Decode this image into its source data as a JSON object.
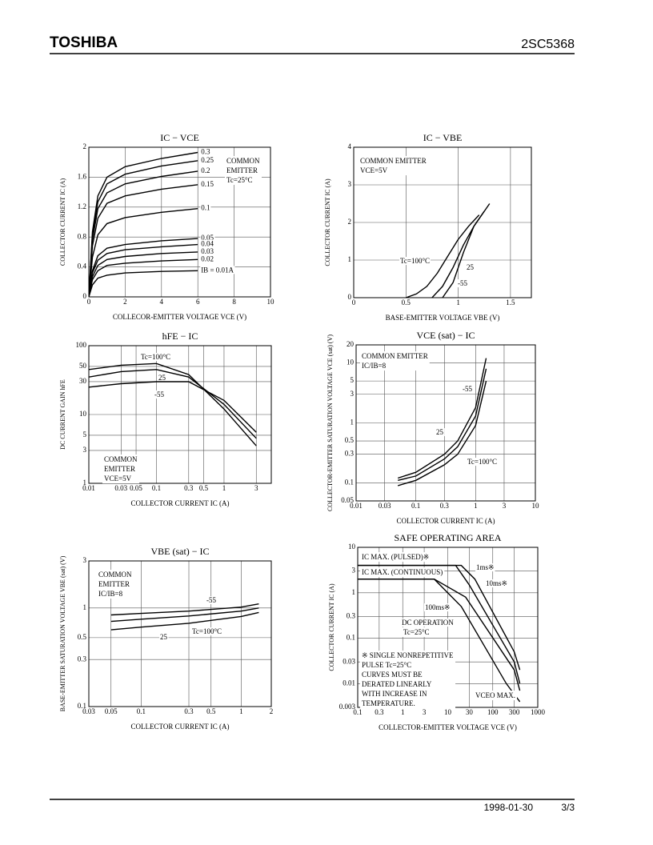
{
  "header": {
    "brand": "TOSHIBA",
    "part": "2SC5368"
  },
  "footer": {
    "date": "1998-01-30",
    "page": "3/3"
  },
  "chart_data": [
    {
      "type": "line",
      "title": "IC − VCE",
      "x_label": "COLLECOR-EMITTER VOLTAGE VCE (V)",
      "y_label": "COLLECTOR CURRENT IC (A)",
      "xlim": [
        0,
        10
      ],
      "xticks": [
        0,
        2,
        4,
        6,
        8,
        10
      ],
      "ylim": [
        0,
        2
      ],
      "yticks": [
        0,
        0.4,
        0.8,
        1.2,
        1.6,
        2
      ],
      "grid": true,
      "color": "#000",
      "notes": [
        [
          "COMMON",
          "EMITTER",
          "Tc=25°C"
        ]
      ],
      "series": [
        {
          "name": "0.3",
          "x": [
            0,
            0.2,
            0.5,
            1,
            2,
            4,
            6
          ],
          "values": [
            0,
            0.87,
            1.35,
            1.6,
            1.74,
            1.85,
            1.93
          ]
        },
        {
          "name": "0.25",
          "x": [
            0,
            0.2,
            0.5,
            1,
            2,
            4,
            6
          ],
          "values": [
            0,
            0.82,
            1.27,
            1.51,
            1.64,
            1.75,
            1.82
          ]
        },
        {
          "name": "0.2",
          "x": [
            0,
            0.2,
            0.5,
            1,
            2,
            4,
            6
          ],
          "values": [
            0,
            0.76,
            1.18,
            1.39,
            1.51,
            1.61,
            1.68
          ]
        },
        {
          "name": "0.15",
          "x": [
            0,
            0.2,
            0.5,
            1,
            2,
            4,
            6
          ],
          "values": [
            0,
            0.68,
            1.05,
            1.25,
            1.35,
            1.44,
            1.5
          ]
        },
        {
          "name": "0.1",
          "x": [
            0,
            0.2,
            0.5,
            1,
            2,
            4,
            6
          ],
          "values": [
            0,
            0.53,
            0.83,
            0.98,
            1.06,
            1.13,
            1.18
          ]
        },
        {
          "name": "0.05",
          "x": [
            0,
            0.2,
            0.5,
            1,
            2,
            4,
            6
          ],
          "values": [
            0,
            0.35,
            0.55,
            0.65,
            0.7,
            0.75,
            0.78
          ]
        },
        {
          "name": "0.04",
          "x": [
            0,
            0.2,
            0.5,
            1,
            2,
            4,
            6
          ],
          "values": [
            0,
            0.32,
            0.49,
            0.58,
            0.63,
            0.67,
            0.7
          ]
        },
        {
          "name": "0.03",
          "x": [
            0,
            0.2,
            0.5,
            1,
            2,
            4,
            6
          ],
          "values": [
            0,
            0.27,
            0.42,
            0.5,
            0.54,
            0.58,
            0.6
          ]
        },
        {
          "name": "0.02",
          "x": [
            0,
            0.2,
            0.5,
            1,
            2,
            4,
            6
          ],
          "values": [
            0,
            0.23,
            0.35,
            0.42,
            0.45,
            0.48,
            0.5
          ]
        },
        {
          "name": "IB = 0.01A",
          "x": [
            0,
            0.2,
            0.5,
            1,
            2,
            4,
            6
          ],
          "values": [
            0,
            0.16,
            0.25,
            0.29,
            0.32,
            0.34,
            0.35
          ]
        }
      ]
    },
    {
      "type": "line",
      "title": "IC − VBE",
      "x_label": "BASE-EMITTER VOLTAGE VBE (V)",
      "y_label": "COLLECTOR CURRENT IC (A)",
      "xlim": [
        0,
        1.7
      ],
      "xticks": [
        0,
        0.5,
        1,
        1.5
      ],
      "ylim": [
        0,
        4
      ],
      "yticks": [
        0,
        1,
        2,
        3,
        4
      ],
      "grid": true,
      "color": "#000",
      "notes": [
        [
          "COMMON EMITTER",
          "VCE=5V"
        ]
      ],
      "series": [
        {
          "name": "Tc=100°C",
          "x": [
            0.5,
            0.6,
            0.7,
            0.8,
            0.9,
            1.0,
            1.1,
            1.2
          ],
          "values": [
            0,
            0.1,
            0.3,
            0.65,
            1.1,
            1.55,
            1.9,
            2.2
          ]
        },
        {
          "name": "25",
          "x": [
            0.75,
            0.85,
            0.95,
            1.05,
            1.15,
            1.25
          ],
          "values": [
            0,
            0.3,
            0.8,
            1.4,
            1.9,
            2.3
          ]
        },
        {
          "name": "-55",
          "x": [
            0.85,
            0.95,
            1.05,
            1.15,
            1.3
          ],
          "values": [
            0,
            0.4,
            1.2,
            1.9,
            2.5
          ]
        }
      ]
    },
    {
      "type": "line",
      "title": "hFE − IC",
      "x_label": "COLLECTOR CURRENT IC (A)",
      "y_label": "DC CURRENT GAIN hFE",
      "xscale": "log",
      "xlim": [
        0.01,
        5
      ],
      "xticks": [
        0.01,
        0.03,
        0.05,
        0.1,
        0.3,
        0.5,
        1,
        3
      ],
      "yscale": "log",
      "ylim": [
        1,
        100
      ],
      "yticks": [
        1,
        3,
        5,
        10,
        30,
        50,
        100
      ],
      "grid": true,
      "color": "#000",
      "notes": [
        [
          "COMMON",
          "EMITTER",
          "VCE=5V"
        ]
      ],
      "series": [
        {
          "name": "Tc=100°C",
          "x": [
            0.01,
            0.03,
            0.1,
            0.3,
            1,
            3
          ],
          "values": [
            45,
            52,
            55,
            38,
            12,
            3.5
          ]
        },
        {
          "name": "25",
          "x": [
            0.01,
            0.03,
            0.1,
            0.3,
            1,
            3
          ],
          "values": [
            35,
            42,
            45,
            35,
            14,
            4.5
          ]
        },
        {
          "name": "-55",
          "x": [
            0.01,
            0.03,
            0.1,
            0.3,
            1,
            3
          ],
          "values": [
            25,
            28,
            30,
            30,
            16,
            5.5
          ]
        }
      ]
    },
    {
      "type": "line",
      "title": "VCE (sat) − IC",
      "x_label": "COLLECTOR CURRENT IC (A)",
      "y_label": "COLLECTOR-EMITTER SATURATION VOLTAGE VCE (sat) (V)",
      "xscale": "log",
      "xlim": [
        0.01,
        10
      ],
      "xticks": [
        0.01,
        0.03,
        0.1,
        0.3,
        1,
        3,
        10
      ],
      "yscale": "log",
      "ylim": [
        0.05,
        20
      ],
      "yticks": [
        0.05,
        0.1,
        0.3,
        0.5,
        1,
        3,
        5,
        10,
        20
      ],
      "grid": true,
      "color": "#000",
      "notes": [
        [
          "COMMON EMITTER",
          "IC/IB=8"
        ]
      ],
      "series": [
        {
          "name": "-55",
          "x": [
            0.05,
            0.1,
            0.3,
            0.5,
            1,
            1.5
          ],
          "values": [
            0.12,
            0.15,
            0.3,
            0.5,
            1.8,
            12
          ]
        },
        {
          "name": "25",
          "x": [
            0.05,
            0.1,
            0.3,
            0.5,
            1,
            1.5
          ],
          "values": [
            0.11,
            0.13,
            0.25,
            0.4,
            1.3,
            8
          ]
        },
        {
          "name": "Tc=100°C",
          "x": [
            0.05,
            0.1,
            0.3,
            0.5,
            1,
            1.5
          ],
          "values": [
            0.09,
            0.11,
            0.2,
            0.3,
            0.9,
            5
          ]
        }
      ]
    },
    {
      "type": "line",
      "title": "VBE (sat) − IC",
      "x_label": "COLLECTOR CURRENT IC (A)",
      "y_label": "BASE-EMITTER SATURATION VOLTAGE VBE (sat) (V)",
      "xscale": "log",
      "xlim": [
        0.03,
        2
      ],
      "xticks": [
        0.03,
        0.05,
        0.1,
        0.3,
        0.5,
        1,
        2
      ],
      "yscale": "log",
      "ylim": [
        0.1,
        3
      ],
      "yticks": [
        0.1,
        0.3,
        0.5,
        1,
        3
      ],
      "grid": true,
      "color": "#000",
      "notes": [
        [
          "COMMON",
          "EMITTER",
          "IC/IB=8"
        ]
      ],
      "series": [
        {
          "name": "-55",
          "x": [
            0.05,
            0.1,
            0.3,
            1,
            1.5
          ],
          "values": [
            0.85,
            0.88,
            0.93,
            1.02,
            1.1
          ]
        },
        {
          "name": "25",
          "x": [
            0.05,
            0.1,
            0.3,
            1,
            1.5
          ],
          "values": [
            0.73,
            0.77,
            0.83,
            0.93,
            1.0
          ]
        },
        {
          "name": "Tc=100°C",
          "x": [
            0.05,
            0.1,
            0.3,
            1,
            1.5
          ],
          "values": [
            0.6,
            0.64,
            0.7,
            0.82,
            0.9
          ]
        }
      ]
    },
    {
      "type": "line",
      "title": "SAFE OPERATING AREA",
      "x_label": "COLLECTOR-EMITTER VOLTAGE VCE (V)",
      "y_label": "COLLECTOR CURRENT IC (A)",
      "xscale": "log",
      "xlim": [
        0.1,
        1000
      ],
      "xticks": [
        0.1,
        0.3,
        1,
        3,
        10,
        30,
        100,
        300,
        1000
      ],
      "yscale": "log",
      "ylim": [
        0.003,
        10
      ],
      "yticks": [
        0.003,
        0.01,
        0.03,
        0.1,
        0.3,
        1,
        3,
        10
      ],
      "grid": true,
      "color": "#000",
      "notes": [
        [
          "IC MAX. (PULSED)※"
        ],
        [
          "IC MAX. (CONTINUOUS)"
        ],
        [
          "Tc=25°C"
        ],
        [
          "※ SINGLE NONREPETITIVE",
          "PULSE Tc=25°C",
          "CURVES MUST BE",
          "DERATED LINEARLY",
          "WITH INCREASE IN",
          "TEMPERATURE."
        ],
        [
          "VCEO MAX."
        ]
      ],
      "series": [
        {
          "name": "1ms※",
          "x": [
            0.1,
            20,
            40,
            300,
            400
          ],
          "values": [
            4,
            4,
            2,
            0.05,
            0.02
          ]
        },
        {
          "name": "10ms※",
          "x": [
            0.1,
            15,
            30,
            300,
            400
          ],
          "values": [
            4,
            4,
            1.5,
            0.03,
            0.01
          ]
        },
        {
          "name": "100ms※",
          "x": [
            0.1,
            5,
            25,
            300,
            400
          ],
          "values": [
            2,
            2,
            0.8,
            0.02,
            0.007
          ]
        },
        {
          "name": "DC OPERATION",
          "x": [
            0.1,
            5,
            20,
            200,
            400
          ],
          "values": [
            2,
            2,
            0.5,
            0.01,
            0.004
          ]
        }
      ]
    }
  ]
}
